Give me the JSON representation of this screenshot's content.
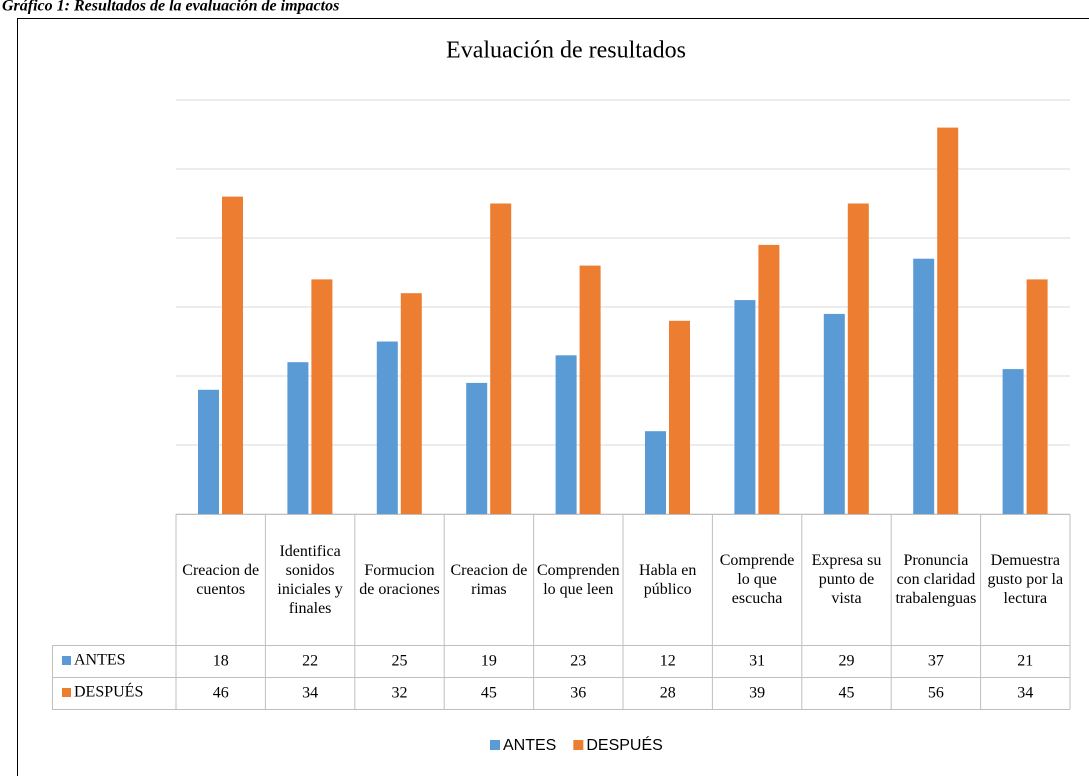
{
  "caption": "Gráfico 1: Resultados de la evaluación de impactos",
  "chart_data": {
    "type": "bar",
    "title": "Evaluación de resultados",
    "categories": [
      "Creacion de cuentos",
      "Identifica sonidos iniciales y finales",
      "Formucion de oraciones",
      "Creacion de rimas",
      "Comprenden lo que leen",
      "Habla en público",
      "Comprende lo que escucha",
      "Expresa su punto de vista",
      "Pronuncia con claridad trabalenguas",
      "Demuestra gusto por la lectura"
    ],
    "series": [
      {
        "name": "ANTES",
        "color": "#5b9bd5",
        "values": [
          18,
          22,
          25,
          19,
          23,
          12,
          31,
          29,
          37,
          21
        ]
      },
      {
        "name": "DESPUÉS",
        "color": "#ed7d31",
        "values": [
          46,
          34,
          32,
          45,
          36,
          28,
          39,
          45,
          56,
          34
        ]
      }
    ],
    "ylim": [
      0,
      60
    ],
    "yticks": [
      0,
      10,
      20,
      30,
      40,
      50,
      60
    ],
    "grid": true,
    "legend": "bottom"
  }
}
